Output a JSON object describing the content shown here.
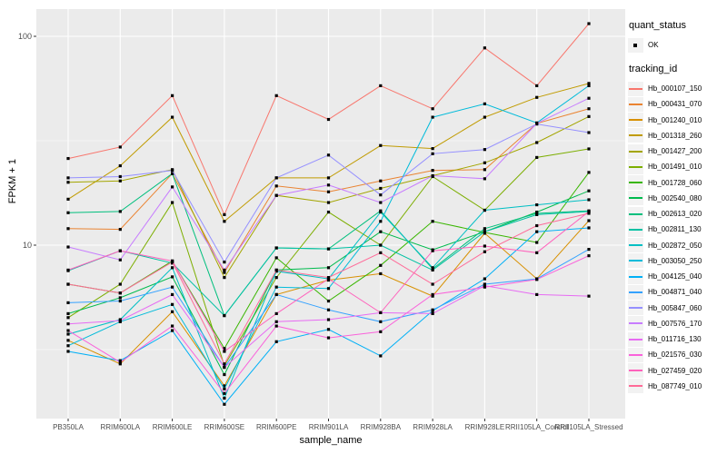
{
  "colors": {
    "panel_bg": "#EBEBEB",
    "grid_line": "#FFFFFF",
    "legend_key_bg": "#F2F2F2",
    "tick_text": "#4D4D4D",
    "tick_mark": "#333333",
    "point_marker": "#000000"
  },
  "legend": {
    "quant_title": "quant_status",
    "quant_items": [
      {
        "label": "OK",
        "marker": "black-square"
      }
    ],
    "tracking_title": "tracking_id"
  },
  "chart_data": {
    "type": "line",
    "title": "",
    "xlabel": "sample_name",
    "ylabel": "FPKM + 1",
    "yscale": "log10",
    "ylim": [
      1.5,
      135
    ],
    "y_major_ticks": [
      100,
      10
    ],
    "y_major_tick_labels": [
      "100",
      "10"
    ],
    "y_minor_ticks": [
      31.62,
      3.162
    ],
    "grid": true,
    "legend_position": "right",
    "categories": [
      "PB350LA",
      "RRIM600LA",
      "RRIM600LE",
      "RRIM600SE",
      "RRIM600PE",
      "RRIM901LA",
      "RRIM928BA",
      "RRIM928LA",
      "RRIM928LE",
      "RRII105LA_Control",
      "RRII105LA_Stressed"
    ],
    "series": [
      {
        "name": "Hb_000107_150",
        "color": "#F8766D",
        "values": [
          26,
          29.5,
          52,
          14,
          52,
          40,
          58,
          45,
          88,
          58,
          115
        ]
      },
      {
        "name": "Hb_000431_070",
        "color": "#EA8331",
        "values": [
          12,
          11.9,
          22,
          7.4,
          19.2,
          18,
          20.3,
          22.8,
          23,
          38.3,
          45
        ]
      },
      {
        "name": "Hb_001240_010",
        "color": "#D89000",
        "values": [
          3.5,
          2.7,
          4.8,
          2.12,
          5.8,
          6.8,
          7.3,
          5.7,
          11.4,
          6.9,
          13.1
        ]
      },
      {
        "name": "Hb_001318_260",
        "color": "#C09B00",
        "values": [
          16.6,
          24,
          41,
          13,
          21,
          21,
          30,
          29,
          41,
          51,
          59.5
        ]
      },
      {
        "name": "Hb_001427_200",
        "color": "#A3A500",
        "values": [
          20,
          20.3,
          23,
          7.0,
          17.3,
          16,
          18.7,
          21.5,
          24.8,
          31,
          41.3
        ]
      },
      {
        "name": "Hb_001491_010",
        "color": "#7CAE00",
        "values": [
          4.5,
          6.5,
          16,
          2.65,
          7.0,
          14.4,
          10,
          21.3,
          14.7,
          26.3,
          28.9
        ]
      },
      {
        "name": "Hb_001728_060",
        "color": "#39B600",
        "values": [
          6.5,
          5.9,
          8.4,
          3.2,
          8.7,
          5.4,
          8.0,
          13,
          11.5,
          10.3,
          22.3
        ]
      },
      {
        "name": "Hb_002540_080",
        "color": "#00BB4E",
        "values": [
          4.7,
          5.6,
          7.05,
          2.4,
          7.6,
          7.8,
          11.6,
          9.5,
          11.6,
          14.4,
          18.2
        ]
      },
      {
        "name": "Hb_002613_020",
        "color": "#00BF7D",
        "values": [
          14.3,
          14.5,
          22,
          4.6,
          9.7,
          9.6,
          14.6,
          7.7,
          12,
          14.2,
          14.6
        ]
      },
      {
        "name": "Hb_002811_130",
        "color": "#00C1A3",
        "values": [
          7.55,
          9.4,
          8.2,
          4.6,
          9.7,
          9.6,
          10,
          7.6,
          11.6,
          14,
          14.5
        ]
      },
      {
        "name": "Hb_002872_050",
        "color": "#00BFC4",
        "values": [
          3.75,
          4.4,
          7.8,
          1.85,
          7.5,
          6.9,
          14.4,
          7.8,
          14.7,
          15.6,
          16.5
        ]
      },
      {
        "name": "Hb_003050_250",
        "color": "#00BBDA",
        "values": [
          3.3,
          4.3,
          5.2,
          2.05,
          6.3,
          6.2,
          13,
          41,
          47.5,
          38.5,
          58
        ]
      },
      {
        "name": "Hb_004125_040",
        "color": "#00B0F6",
        "values": [
          3.1,
          2.8,
          3.9,
          1.73,
          3.45,
          3.95,
          2.95,
          4.85,
          6.9,
          11.6,
          12.1
        ]
      },
      {
        "name": "Hb_004871_040",
        "color": "#35A2FF",
        "values": [
          5.3,
          5.4,
          6.3,
          2.6,
          5.8,
          4.9,
          4.3,
          4.9,
          6.5,
          6.9,
          9.55
        ]
      },
      {
        "name": "Hb_005847_060",
        "color": "#9590FF",
        "values": [
          21,
          21.3,
          22.8,
          8.3,
          21,
          27,
          17.4,
          27.4,
          28.7,
          38,
          34.6
        ]
      },
      {
        "name": "Hb_007576_170",
        "color": "#C77CFF",
        "values": [
          9.8,
          8.5,
          19,
          7.6,
          17.3,
          19.4,
          16,
          21.5,
          20.8,
          38.3,
          50.5
        ]
      },
      {
        "name": "Hb_011716_130",
        "color": "#E76BF3",
        "values": [
          4.2,
          4.35,
          5.8,
          2.6,
          4.3,
          4.4,
          4.75,
          4.7,
          6.4,
          5.8,
          5.7
        ]
      },
      {
        "name": "Hb_021576_030",
        "color": "#FA62DB",
        "values": [
          3.9,
          2.75,
          4.1,
          1.95,
          4.1,
          3.6,
          3.85,
          5.8,
          6.3,
          6.85,
          8.9
        ]
      },
      {
        "name": "Hb_027459_020",
        "color": "#FF62BC",
        "values": [
          7.6,
          9.4,
          8.4,
          3.1,
          4.7,
          6.9,
          4.75,
          9.4,
          9.9,
          9.2,
          14.5
        ]
      },
      {
        "name": "Hb_087749_010",
        "color": "#FF6A98",
        "values": [
          6.5,
          5.9,
          8.3,
          2.7,
          7.6,
          7.0,
          9.2,
          6.5,
          9.3,
          12.4,
          14.2
        ]
      }
    ]
  }
}
